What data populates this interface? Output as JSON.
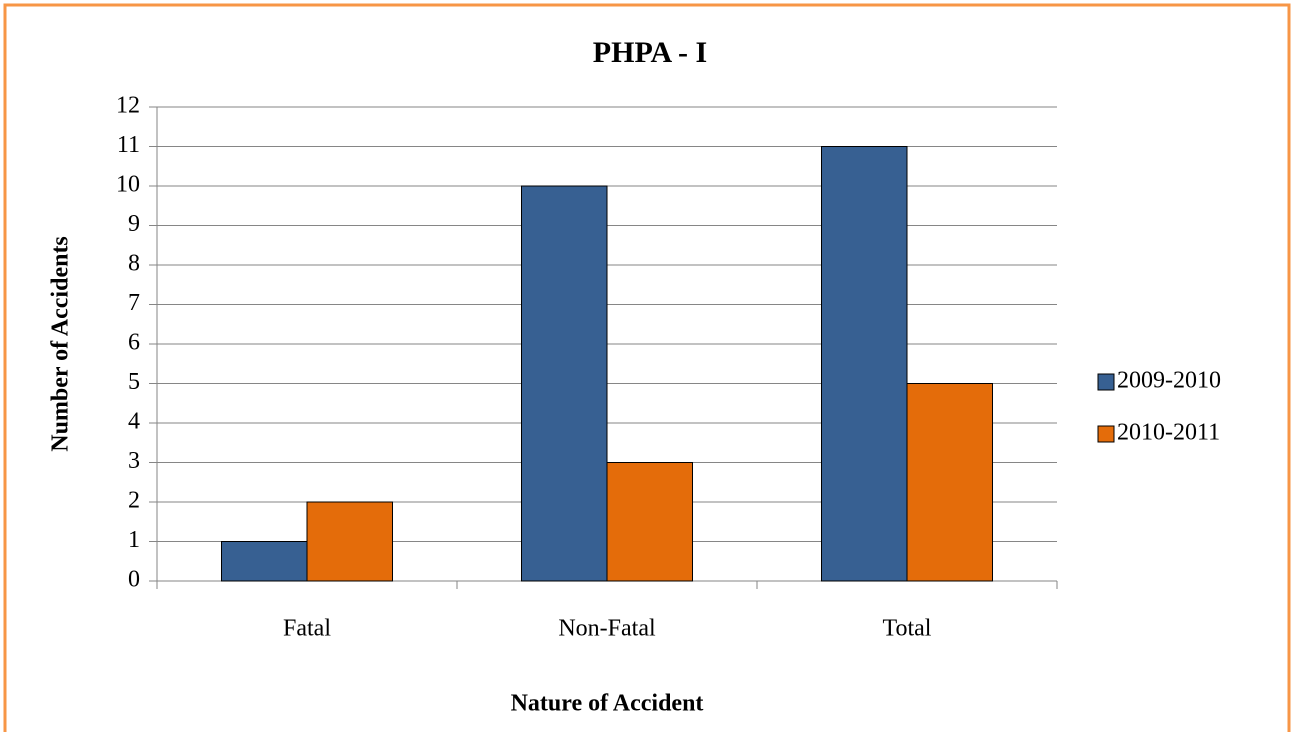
{
  "chart_data": {
    "type": "bar",
    "title": "PHPA - I",
    "x_label": "Nature of Accident",
    "y_label": "Number of Accidents",
    "categories": [
      "Fatal",
      "Non-Fatal",
      "Total"
    ],
    "series": [
      {
        "name": "2009-2010",
        "color": "#376092",
        "values": [
          1,
          10,
          11
        ]
      },
      {
        "name": "2010-2011",
        "color": "#e46c0a",
        "values": [
          2,
          3,
          5
        ]
      }
    ],
    "ylim": [
      0,
      12
    ],
    "yticks": [
      0,
      1,
      2,
      3,
      4,
      5,
      6,
      7,
      8,
      9,
      10,
      11,
      12
    ],
    "grid": true,
    "legend": "right"
  }
}
